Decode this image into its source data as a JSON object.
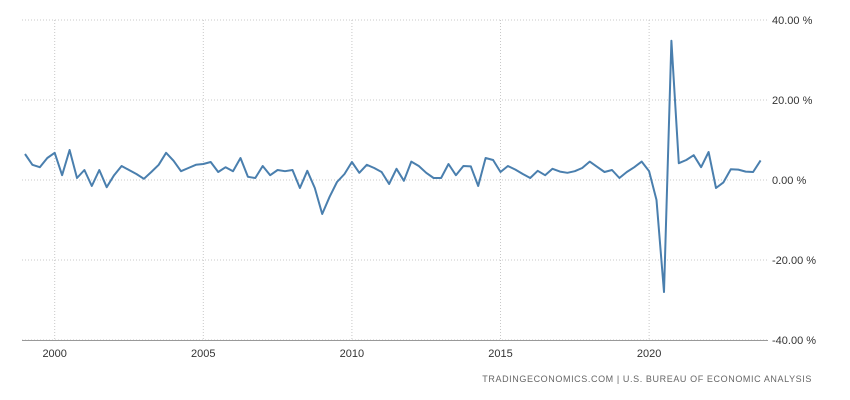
{
  "chart_data": {
    "type": "line",
    "title": "",
    "xlabel": "",
    "ylabel": "",
    "xlim": [
      1998.9,
      2024.0
    ],
    "ylim": [
      -40,
      40
    ],
    "x_ticks": [
      2000,
      2005,
      2010,
      2015,
      2020
    ],
    "x_tick_labels": [
      "2000",
      "2005",
      "2010",
      "2015",
      "2020"
    ],
    "y_ticks": [
      40,
      20,
      0,
      -20,
      -40
    ],
    "y_tick_labels": [
      "40.00 %",
      "20.00 %",
      "0.00 %",
      "-20.00 %",
      "-40.00 %"
    ],
    "grid": true,
    "line_color": "#4a7fae",
    "series": [
      {
        "name": "",
        "x": [
          1999.0,
          1999.25,
          1999.5,
          1999.75,
          2000.0,
          2000.25,
          2000.5,
          2000.75,
          2001.0,
          2001.25,
          2001.5,
          2001.75,
          2002.0,
          2002.25,
          2002.5,
          2002.75,
          2003.0,
          2003.25,
          2003.5,
          2003.75,
          2004.0,
          2004.25,
          2004.5,
          2004.75,
          2005.0,
          2005.25,
          2005.5,
          2005.75,
          2006.0,
          2006.25,
          2006.5,
          2006.75,
          2007.0,
          2007.25,
          2007.5,
          2007.75,
          2008.0,
          2008.25,
          2008.5,
          2008.75,
          2009.0,
          2009.25,
          2009.5,
          2009.75,
          2010.0,
          2010.25,
          2010.5,
          2010.75,
          2011.0,
          2011.25,
          2011.5,
          2011.75,
          2012.0,
          2012.25,
          2012.5,
          2012.75,
          2013.0,
          2013.25,
          2013.5,
          2013.75,
          2014.0,
          2014.25,
          2014.5,
          2014.75,
          2015.0,
          2015.25,
          2015.5,
          2015.75,
          2016.0,
          2016.25,
          2016.5,
          2016.75,
          2017.0,
          2017.25,
          2017.5,
          2017.75,
          2018.0,
          2018.25,
          2018.5,
          2018.75,
          2019.0,
          2019.25,
          2019.5,
          2019.75,
          2020.0,
          2020.25,
          2020.5,
          2020.75,
          2021.0,
          2021.25,
          2021.5,
          2021.75,
          2022.0,
          2022.25,
          2022.5,
          2022.75,
          2023.0,
          2023.25,
          2023.5,
          2023.75
        ],
        "values": [
          6.5,
          3.8,
          3.2,
          5.5,
          6.8,
          1.2,
          7.5,
          0.5,
          2.5,
          -1.5,
          2.5,
          -1.8,
          1.2,
          3.5,
          2.5,
          1.5,
          0.3,
          2.0,
          3.8,
          6.8,
          4.8,
          2.2,
          3.0,
          3.8,
          4.0,
          4.5,
          2.0,
          3.2,
          2.2,
          5.5,
          0.8,
          0.5,
          3.5,
          1.2,
          2.5,
          2.2,
          2.5,
          -2.0,
          2.3,
          -2.0,
          -8.5,
          -4.2,
          -0.5,
          1.5,
          4.5,
          1.8,
          3.8,
          3.0,
          2.0,
          -1.0,
          2.8,
          -0.2,
          4.6,
          3.5,
          1.8,
          0.5,
          0.5,
          4.0,
          1.2,
          3.5,
          3.4,
          -1.5,
          5.5,
          5.0,
          2.0,
          3.5,
          2.6,
          1.5,
          0.5,
          2.3,
          1.2,
          2.8,
          2.1,
          1.8,
          2.2,
          3.0,
          4.6,
          3.3,
          2.0,
          2.5,
          0.5,
          2.0,
          3.2,
          4.6,
          2.2,
          -5.0,
          -28.0,
          34.8,
          4.2,
          5.0,
          6.2,
          3.2,
          7.0,
          -2.0,
          -0.6,
          2.7,
          2.6,
          2.1,
          2.0,
          4.9
        ]
      }
    ]
  },
  "footer": {
    "source": "TRADINGECONOMICS.COM  |  U.S. BUREAU OF ECONOMIC ANALYSIS"
  }
}
